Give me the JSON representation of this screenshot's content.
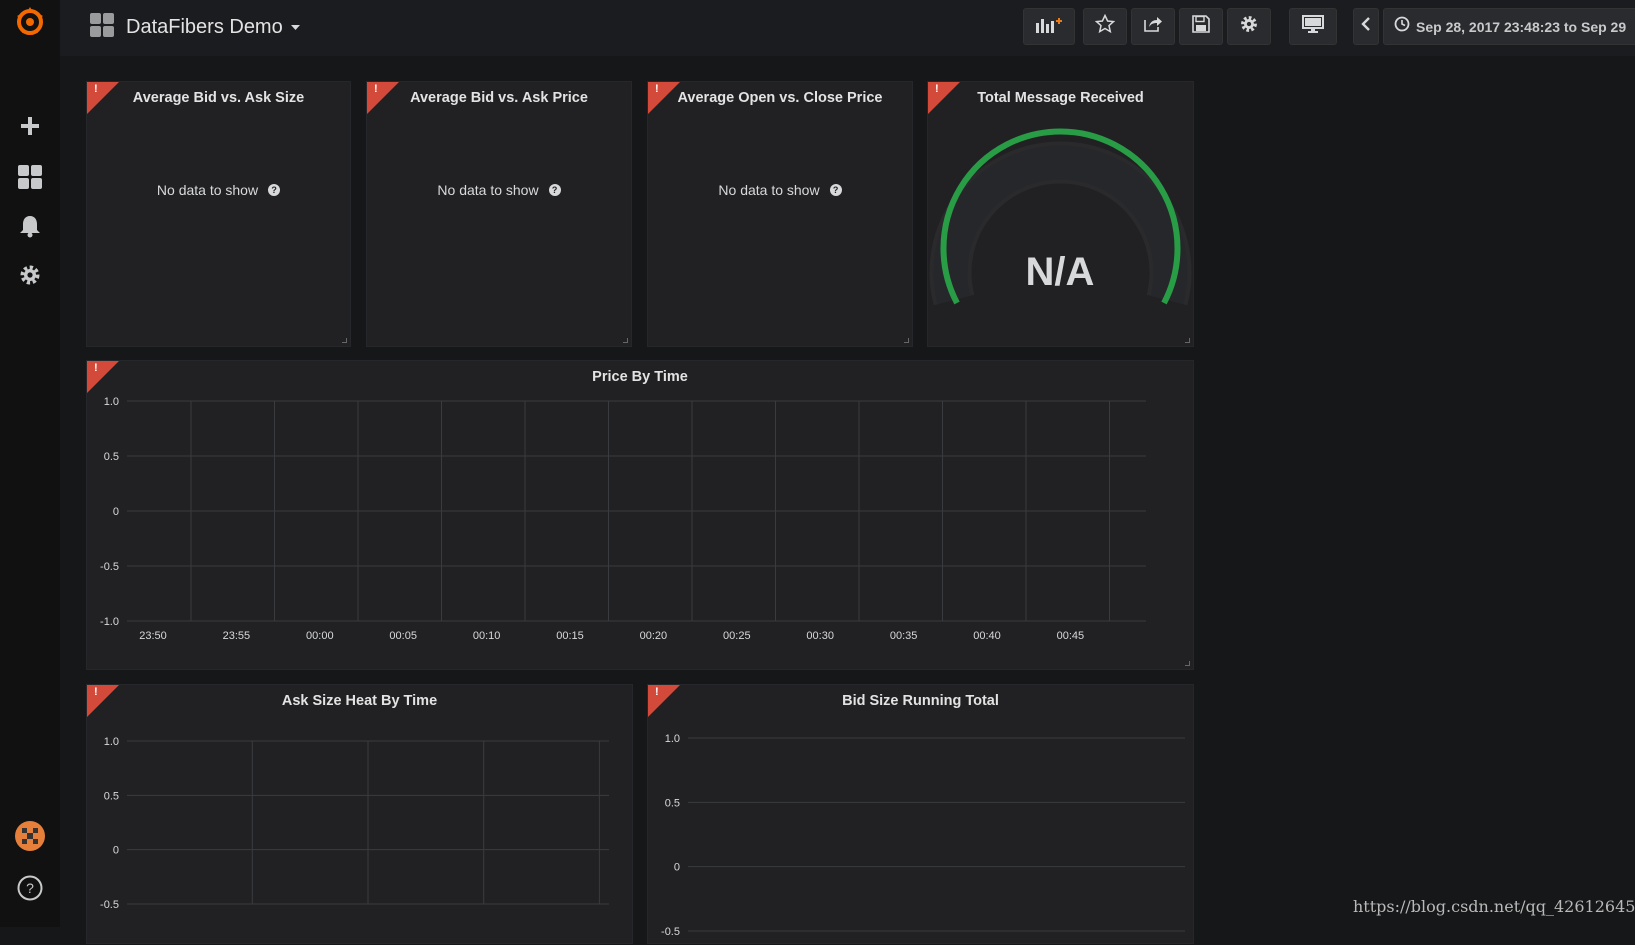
{
  "navbar": {
    "dashboard_title": "DataFibers Demo",
    "time_range": "Sep 28, 2017 23:48:23 to Sep 29"
  },
  "sidemenu": {
    "icons": [
      "grafana-logo-icon",
      "plus-icon",
      "dashboards-icon",
      "bell-icon",
      "gear-icon",
      "avatar",
      "help-icon"
    ]
  },
  "panels": {
    "p1": {
      "title": "Average Bid vs. Ask Size",
      "message": "No data to show",
      "alert_mark": "!"
    },
    "p2": {
      "title": "Average Bid vs. Ask Price",
      "message": "No data to show",
      "alert_mark": "!"
    },
    "p3": {
      "title": "Average Open vs. Close Price",
      "message": "No data to show",
      "alert_mark": "!"
    },
    "gauge": {
      "title": "Total Message Received",
      "value": "N/A",
      "alert_mark": "!",
      "color": "#299c46"
    },
    "price": {
      "title": "Price By Time",
      "alert_mark": "!"
    },
    "ask": {
      "title": "Ask Size Heat By Time",
      "alert_mark": "!"
    },
    "bid": {
      "title": "Bid Size Running Total",
      "alert_mark": "!"
    }
  },
  "colors": {
    "alert": "#d44a3a",
    "gauge_ok": "#299c46",
    "logo": "#f46800"
  },
  "watermark": "https://blog.csdn.net/qq_42612645",
  "chart_data": [
    {
      "type": "line",
      "title": "Price By Time",
      "x": [
        "23:50",
        "23:55",
        "00:00",
        "00:05",
        "00:10",
        "00:15",
        "00:20",
        "00:25",
        "00:30",
        "00:35",
        "00:40",
        "00:45"
      ],
      "yticks": [
        "1.0",
        "0.5",
        "0",
        "-0.5",
        "-1.0"
      ],
      "ylim": [
        -1.0,
        1.0
      ],
      "series": [],
      "grid": true
    },
    {
      "type": "heatmap",
      "title": "Ask Size Heat By Time",
      "yticks": [
        "1.0",
        "0.5",
        "0",
        "-0.5"
      ],
      "ylim": [
        -0.5,
        1.0
      ],
      "series": [],
      "grid": true
    },
    {
      "type": "line",
      "title": "Bid Size Running Total",
      "yticks": [
        "1.0",
        "0.5",
        "0",
        "-0.5"
      ],
      "ylim": [
        -0.5,
        1.0
      ],
      "series": [],
      "grid": true
    }
  ]
}
